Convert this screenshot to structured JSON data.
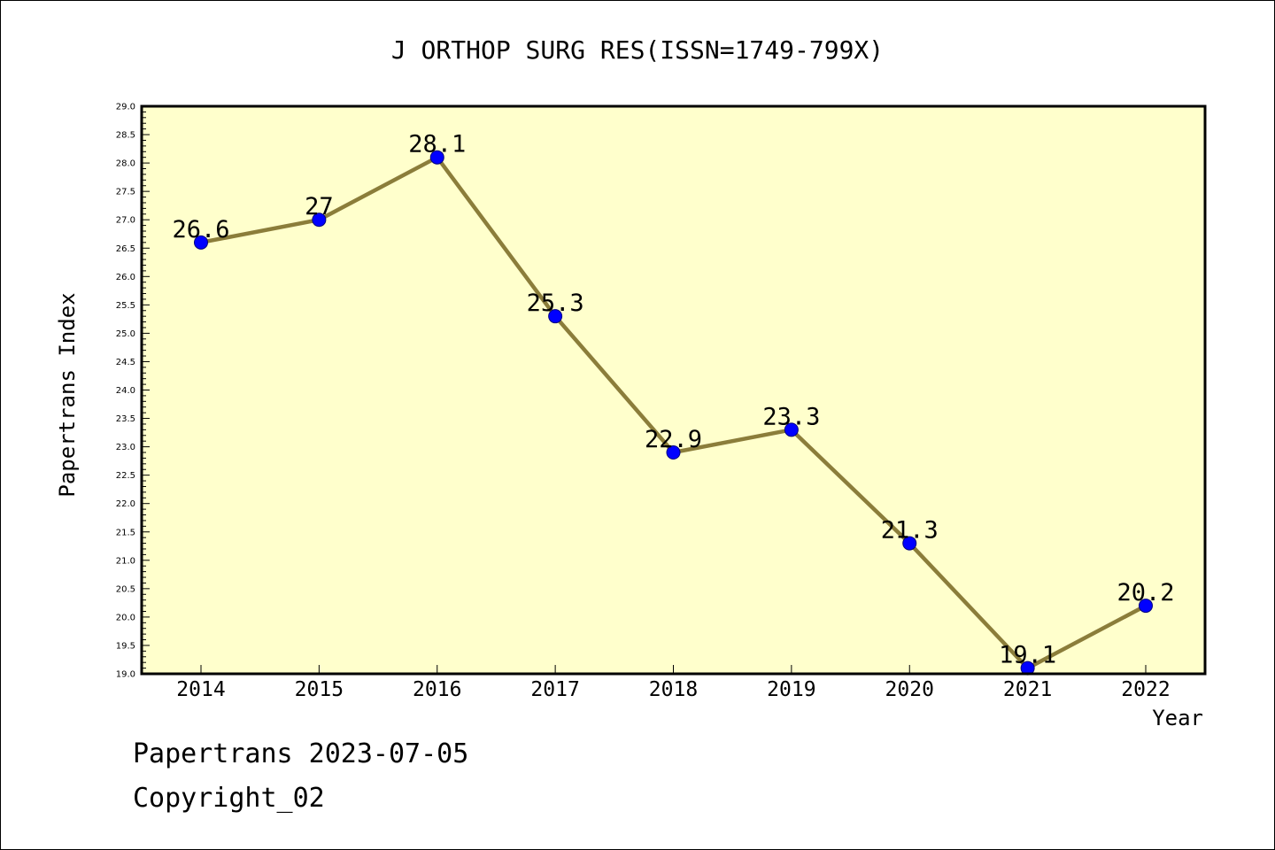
{
  "chart_data": {
    "type": "line",
    "title": "J ORTHOP SURG RES(ISSN=1749-799X)",
    "xlabel": "Year",
    "ylabel": "Papertrans Index",
    "categories": [
      "2014",
      "2015",
      "2016",
      "2017",
      "2018",
      "2019",
      "2020",
      "2021",
      "2022"
    ],
    "series": [
      {
        "values": [
          26.6,
          27,
          28.1,
          25.3,
          22.9,
          23.3,
          21.3,
          19.1,
          20.2
        ],
        "labels": [
          "26.6",
          "27",
          "28.1",
          "25.3",
          "22.9",
          "23.3",
          "21.3",
          "19.1",
          "20.2"
        ]
      }
    ],
    "ylim": [
      19.0,
      29.0
    ],
    "ytick_step": 0.5,
    "grid": false,
    "legend": "none"
  },
  "colors": {
    "plot_background": "#ffffcc",
    "line": "#8b7d3a",
    "marker_fill": "#0000ff",
    "marker_stroke": "#000080"
  },
  "footer": {
    "date_text": "Papertrans 2023-07-05",
    "copyright_text": "Copyright_02"
  }
}
